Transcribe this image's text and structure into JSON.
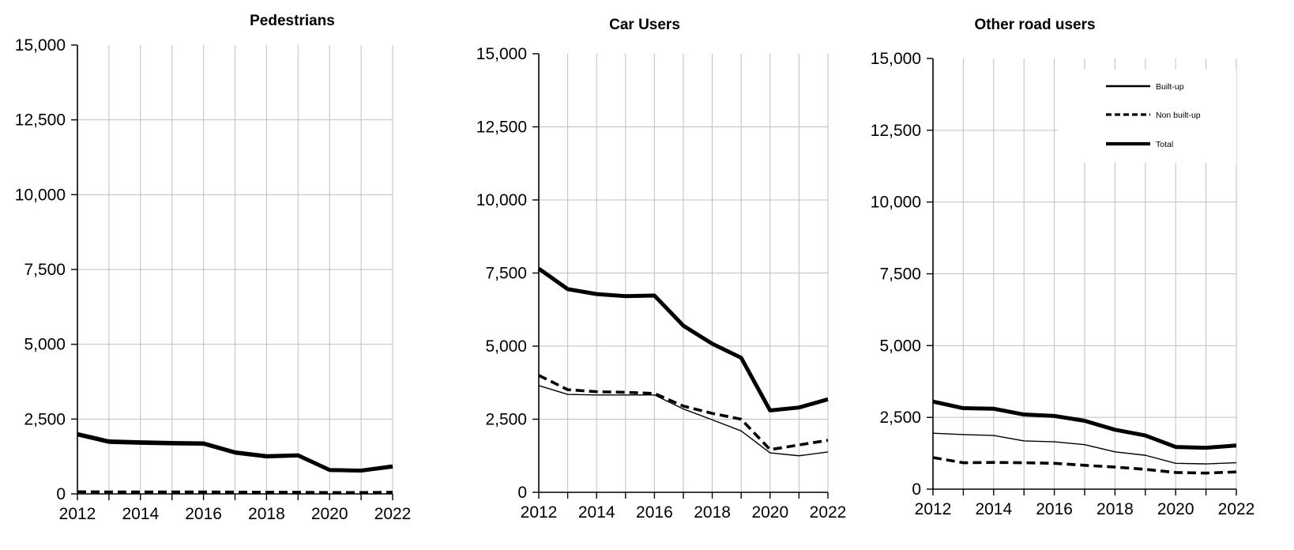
{
  "colors": {
    "ink": "#000000",
    "grid": "#bfbfbf",
    "background": "#ffffff"
  },
  "axes": {
    "y_tick_labels": [
      "0",
      "2,500",
      "5,000",
      "7,500",
      "10,000",
      "12,500",
      "15,000"
    ],
    "x_tick_labels_shown": [
      "2012",
      "2014",
      "2016",
      "2018",
      "2020",
      "2022"
    ]
  },
  "legend": {
    "position": "top-right-inside-third-chart",
    "items": [
      {
        "label": "Built-up",
        "style": "solid-thin"
      },
      {
        "label": "Non built-up",
        "style": "dashed"
      },
      {
        "label": "Total",
        "style": "solid-thick"
      }
    ]
  },
  "chart_data": [
    {
      "type": "line",
      "title": "Pedestrians",
      "x": [
        2012,
        2013,
        2014,
        2015,
        2016,
        2017,
        2018,
        2019,
        2020,
        2021,
        2022
      ],
      "xlabel": "",
      "ylabel": "",
      "ylim": [
        0,
        15000
      ],
      "y_tick_step": 2500,
      "grid": true,
      "legend_visible": false,
      "series": [
        {
          "name": "Built-up",
          "style": "solid-thin",
          "values": [
            1935,
            1690,
            1660,
            1640,
            1630,
            1330,
            1205,
            1235,
            755,
            735,
            865
          ]
        },
        {
          "name": "Non built-up",
          "style": "dashed",
          "values": [
            70,
            65,
            65,
            65,
            65,
            60,
            55,
            55,
            45,
            45,
            55
          ]
        },
        {
          "name": "Total",
          "style": "solid-thick",
          "values": [
            2000,
            1755,
            1725,
            1705,
            1690,
            1390,
            1260,
            1290,
            800,
            780,
            920
          ]
        }
      ]
    },
    {
      "type": "line",
      "title": "Car Users",
      "x": [
        2012,
        2013,
        2014,
        2015,
        2016,
        2017,
        2018,
        2019,
        2020,
        2021,
        2022
      ],
      "xlabel": "",
      "ylabel": "",
      "ylim": [
        0,
        15000
      ],
      "y_tick_step": 2500,
      "grid": true,
      "legend_visible": false,
      "series": [
        {
          "name": "Built-up",
          "style": "solid-thin",
          "values": [
            3650,
            3350,
            3330,
            3330,
            3330,
            2850,
            2480,
            2100,
            1350,
            1250,
            1380
          ]
        },
        {
          "name": "Non built-up",
          "style": "dashed",
          "values": [
            4000,
            3510,
            3440,
            3420,
            3380,
            2950,
            2700,
            2500,
            1460,
            1620,
            1780
          ]
        },
        {
          "name": "Total",
          "style": "solid-thick",
          "values": [
            7650,
            6950,
            6780,
            6710,
            6730,
            5700,
            5080,
            4600,
            2800,
            2900,
            3180
          ]
        }
      ]
    },
    {
      "type": "line",
      "title": "Other road users",
      "x": [
        2012,
        2013,
        2014,
        2015,
        2016,
        2017,
        2018,
        2019,
        2020,
        2021,
        2022
      ],
      "xlabel": "",
      "ylabel": "",
      "ylim": [
        0,
        15000
      ],
      "y_tick_step": 2500,
      "grid": true,
      "legend_visible": true,
      "series": [
        {
          "name": "Built-up",
          "style": "solid-thin",
          "values": [
            1950,
            1900,
            1870,
            1680,
            1650,
            1550,
            1300,
            1180,
            900,
            880,
            920
          ]
        },
        {
          "name": "Non built-up",
          "style": "dashed",
          "values": [
            1100,
            920,
            930,
            920,
            900,
            830,
            770,
            690,
            580,
            560,
            600
          ]
        },
        {
          "name": "Total",
          "style": "solid-thick",
          "values": [
            3050,
            2820,
            2800,
            2600,
            2550,
            2380,
            2070,
            1870,
            1470,
            1440,
            1520
          ]
        }
      ]
    }
  ]
}
